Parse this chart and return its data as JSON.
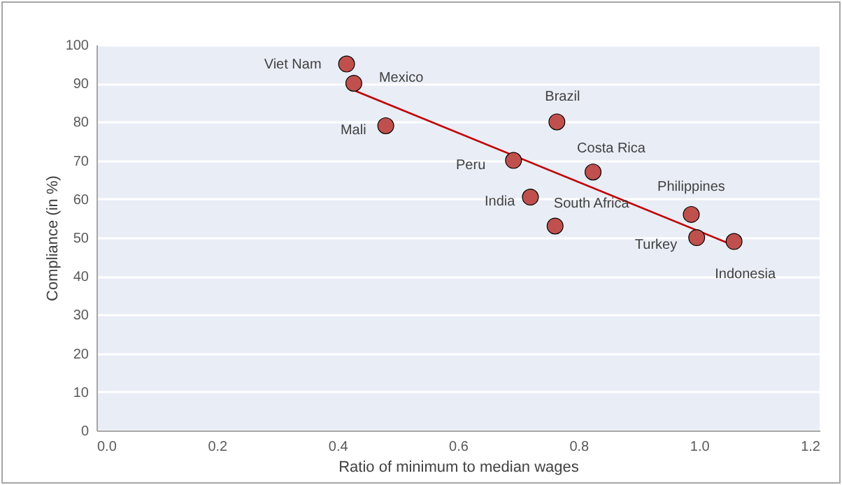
{
  "chart_data": {
    "type": "scatter",
    "xlabel": "Ratio of minimum to median wages",
    "ylabel": "Compliance (in %)",
    "xlim": [
      0,
      1.2
    ],
    "ylim": [
      0,
      100
    ],
    "xticks": [
      {
        "value": 0,
        "label": "0.0"
      },
      0.2,
      0.4,
      0.6,
      0.8,
      {
        "value": 1,
        "label": "1.0"
      },
      1.2
    ],
    "yticks": [
      0,
      10,
      20,
      30,
      40,
      50,
      60,
      70,
      80,
      90,
      100
    ],
    "grid": "y",
    "marker": "circle",
    "series": [
      {
        "type": "scatter",
        "color": "#c0504d",
        "x": [
          0.415,
          0.427,
          0.48,
          0.764,
          0.824,
          0.692,
          0.72,
          0.761,
          0.987,
          0.996,
          1.058
        ],
        "values": [
          95,
          90,
          79,
          80,
          67,
          70,
          60.5,
          53,
          56,
          50,
          49
        ]
      },
      {
        "type": "line",
        "marker": "none",
        "color": "#c00000",
        "x": [
          0.43,
          1.065
        ],
        "values": [
          88,
          47.5
        ]
      }
    ],
    "annotations": [
      {
        "text": "Viet Nam",
        "x": 0.415,
        "y": 95
      },
      {
        "text": "Mexico",
        "x": 0.427,
        "y": 90
      },
      {
        "text": "Mali",
        "x": 0.48,
        "y": 79
      },
      {
        "text": "Brazil",
        "x": 0.764,
        "y": 80
      },
      {
        "text": "Costa Rica",
        "x": 0.824,
        "y": 67
      },
      {
        "text": "Peru",
        "x": 0.692,
        "y": 70
      },
      {
        "text": "India",
        "x": 0.72,
        "y": 60.5
      },
      {
        "text": "South Africa",
        "x": 0.761,
        "y": 53
      },
      {
        "text": "Philippines",
        "x": 0.987,
        "y": 56
      },
      {
        "text": "Turkey",
        "x": 0.996,
        "y": 50
      },
      {
        "text": "Indonesia",
        "x": 1.058,
        "y": 49
      }
    ]
  }
}
